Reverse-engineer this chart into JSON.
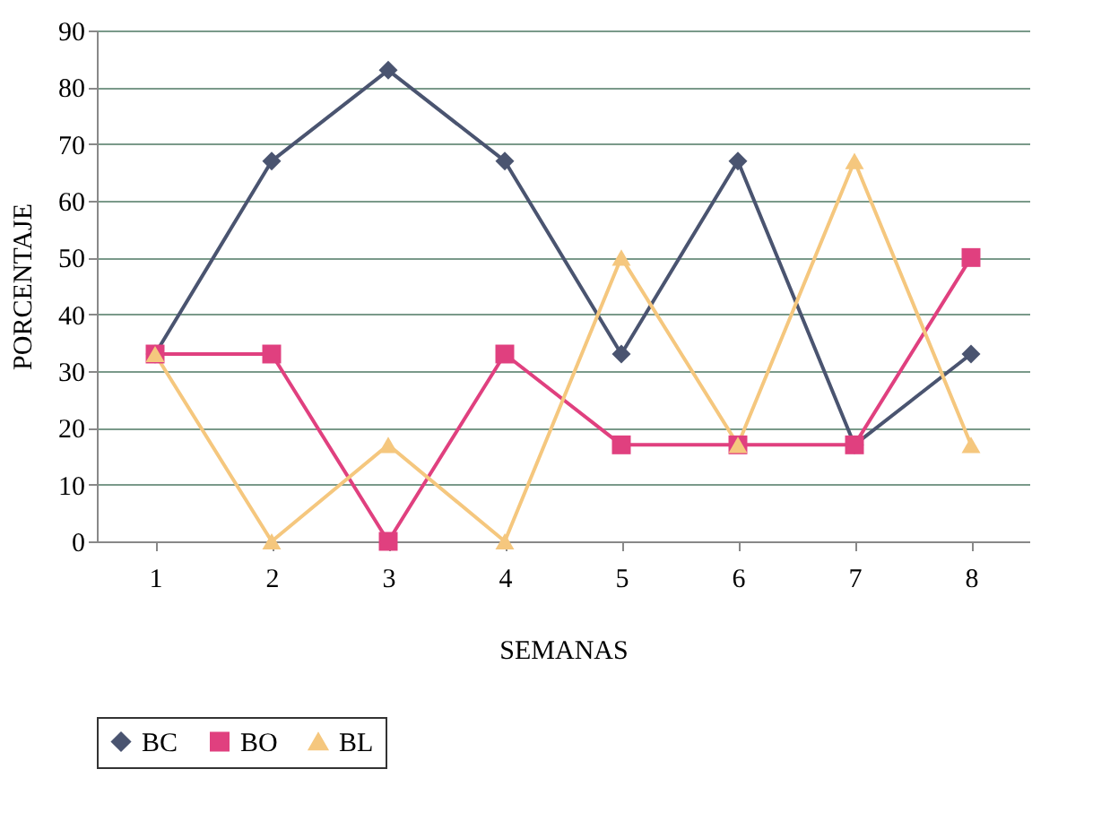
{
  "chart_data": {
    "type": "line",
    "xlabel": "SEMANAS",
    "ylabel": "PORCENTAJE",
    "categories": [
      "1",
      "2",
      "3",
      "4",
      "5",
      "6",
      "7",
      "8"
    ],
    "series": [
      {
        "name": "BC",
        "color": "#4a5470",
        "marker": "diamond",
        "values": [
          33,
          67,
          83,
          67,
          33,
          67,
          17,
          33
        ]
      },
      {
        "name": "BO",
        "color": "#e0407f",
        "marker": "square",
        "values": [
          33,
          33,
          0,
          33,
          17,
          17,
          17,
          50
        ]
      },
      {
        "name": "BL",
        "color": "#f5c77e",
        "marker": "triangle",
        "values": [
          33,
          0,
          17,
          0,
          50,
          17,
          67,
          17
        ]
      }
    ],
    "ylim": [
      0,
      90
    ],
    "yticks": [
      0,
      10,
      20,
      30,
      40,
      50,
      60,
      70,
      80,
      90
    ],
    "grid": "y",
    "legend": "bottom",
    "line_style": "solid"
  }
}
